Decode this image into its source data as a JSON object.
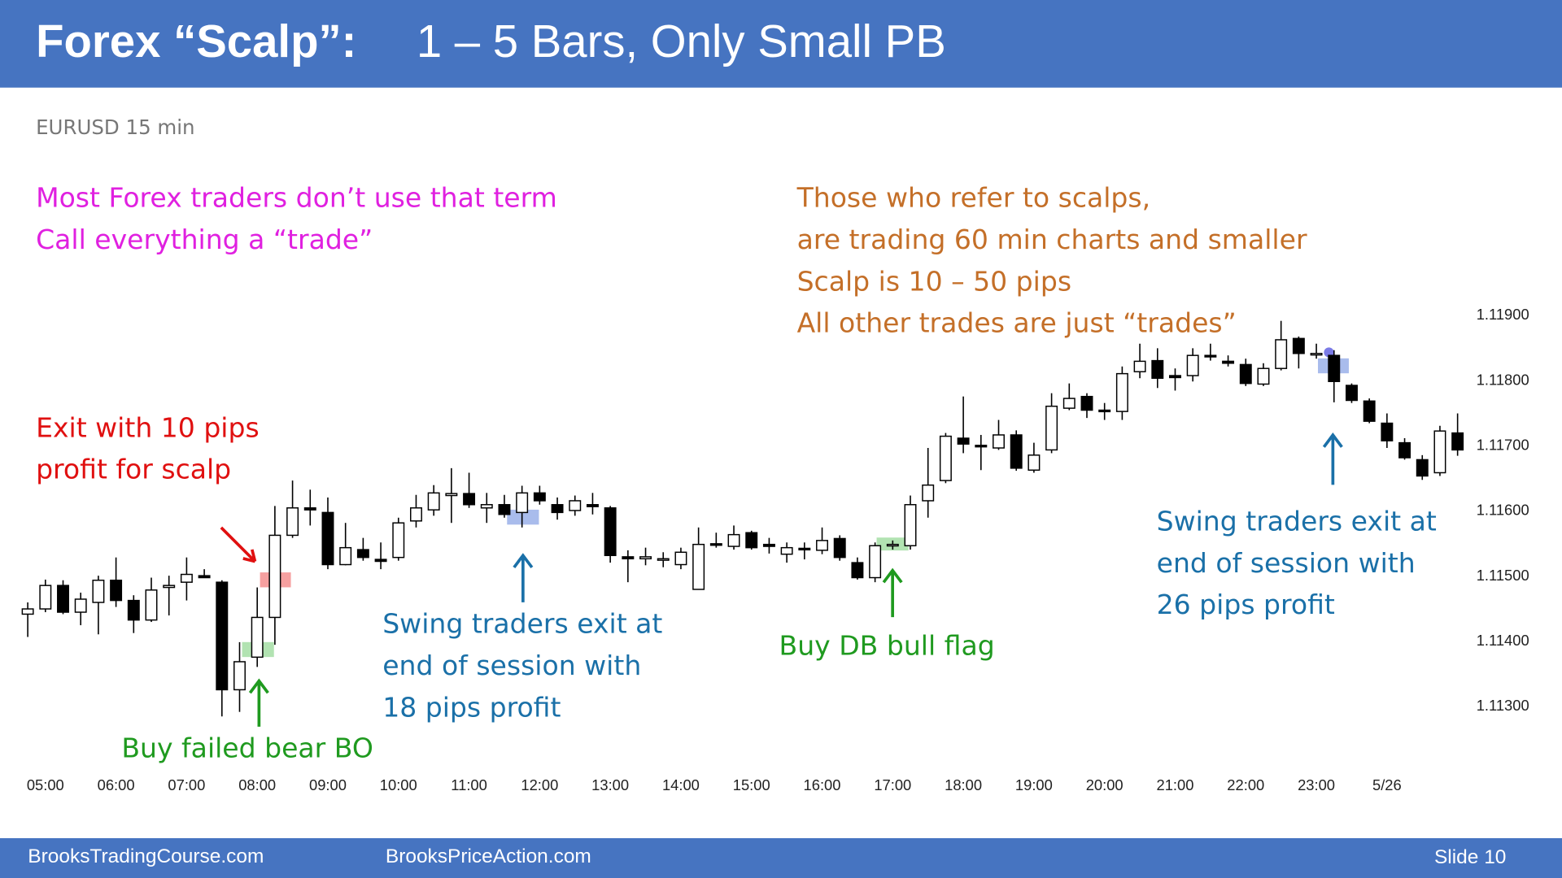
{
  "slide": {
    "title_bold": "Forex “Scalp”:",
    "title_rest": "1 – 5 Bars, Only Small PB",
    "footer_left": "BrooksTradingCourse.com",
    "footer_mid": "BrooksPriceAction.com",
    "footer_right": "Slide  10"
  },
  "chart_data": {
    "type": "candlestick",
    "subtitle": "EURUSD 15 min",
    "categories": [
      null,
      "05:00",
      null,
      null,
      null,
      "06:00",
      null,
      null,
      null,
      "07:00",
      null,
      null,
      null,
      "08:00",
      null,
      null,
      null,
      "09:00",
      null,
      null,
      null,
      "10:00",
      null,
      null,
      null,
      "11:00",
      null,
      null,
      null,
      "12:00",
      null,
      null,
      null,
      "13:00",
      null,
      null,
      null,
      "14:00",
      null,
      null,
      null,
      "15:00",
      null,
      null,
      null,
      "16:00",
      null,
      null,
      null,
      "17:00",
      null,
      null,
      null,
      "18:00",
      null,
      null,
      null,
      "19:00",
      null,
      null,
      null,
      "20:00",
      null,
      null,
      null,
      "21:00",
      null,
      null,
      null,
      "22:00",
      null,
      null,
      null,
      "23:00",
      null,
      null,
      null,
      "5/26",
      null,
      null,
      null,
      null
    ],
    "open": [
      1.11442,
      1.1145,
      1.11486,
      1.11445,
      1.1146,
      1.11494,
      1.11463,
      1.11433,
      1.11483,
      1.11491,
      1.11501,
      1.11491,
      1.11326,
      1.11376,
      1.11437,
      1.11563,
      1.11605,
      1.11598,
      1.11518,
      1.11541,
      1.11526,
      1.11529,
      1.11585,
      1.11602,
      1.11624,
      1.11627,
      1.11605,
      1.1161,
      1.11598,
      1.11628,
      1.1161,
      1.11601,
      1.1161,
      1.11605,
      1.1153,
      1.11527,
      1.11526,
      1.11518,
      1.1148,
      1.1155,
      1.11546,
      1.11567,
      1.11549,
      1.11534,
      1.11543,
      1.1154,
      1.11558,
      1.11521,
      1.11498,
      1.11547,
      1.11547,
      1.11616,
      1.11647,
      1.11712,
      1.11701,
      1.11697,
      1.11717,
      1.11663,
      1.11694,
      1.11758,
      1.11776,
      1.11755,
      1.11753,
      1.11814,
      1.11831,
      1.11808,
      1.11808,
      1.11839,
      1.1183,
      1.11825,
      1.11795,
      1.11819,
      1.11865,
      1.1184,
      1.11839,
      1.11793,
      1.11769,
      1.11735,
      1.11705,
      1.11679,
      1.11659,
      1.1172
    ],
    "high": [
      1.1146,
      1.11495,
      1.11494,
      1.11475,
      1.11501,
      1.11529,
      1.11471,
      1.11498,
      1.11501,
      1.11529,
      1.11511,
      1.11494,
      1.11399,
      1.11483,
      1.11608,
      1.11647,
      1.11633,
      1.11621,
      1.11582,
      1.11559,
      1.11552,
      1.1159,
      1.11625,
      1.1164,
      1.11666,
      1.11659,
      1.11628,
      1.11625,
      1.11639,
      1.11639,
      1.11621,
      1.11624,
      1.11628,
      1.11608,
      1.1154,
      1.11544,
      1.11537,
      1.11544,
      1.11575,
      1.11567,
      1.11578,
      1.1157,
      1.11559,
      1.11552,
      1.11552,
      1.11575,
      1.11563,
      1.11529,
      1.11552,
      1.11555,
      1.11624,
      1.11697,
      1.1172,
      1.11776,
      1.11717,
      1.1174,
      1.11724,
      1.11705,
      1.11781,
      1.11796,
      1.11781,
      1.11766,
      1.11822,
      1.11857,
      1.1185,
      1.11819,
      1.1185,
      1.11857,
      1.11839,
      1.11834,
      1.11827,
      1.11892,
      1.11868,
      1.11857,
      1.11847,
      1.11796,
      1.11773,
      1.1175,
      1.11712,
      1.11686,
      1.11731,
      1.1175
    ],
    "low": [
      1.11407,
      1.11445,
      1.11442,
      1.11425,
      1.11411,
      1.11453,
      1.11413,
      1.1143,
      1.1144,
      1.11463,
      1.11498,
      1.11285,
      1.11292,
      1.11361,
      1.11395,
      1.11559,
      1.11578,
      1.11511,
      1.11517,
      1.11524,
      1.11511,
      1.11524,
      1.11575,
      1.11593,
      1.11582,
      1.11605,
      1.11582,
      1.1159,
      1.11575,
      1.1161,
      1.11587,
      1.11593,
      1.11595,
      1.11521,
      1.11491,
      1.11517,
      1.11514,
      1.11511,
      1.1148,
      1.11544,
      1.11541,
      1.11541,
      1.11535,
      1.11521,
      1.11526,
      1.11534,
      1.11524,
      1.11495,
      1.11491,
      1.11541,
      1.11541,
      1.1159,
      1.11643,
      1.11689,
      1.11663,
      1.11694,
      1.11662,
      1.11659,
      1.11689,
      1.11755,
      1.11743,
      1.1174,
      1.1174,
      1.11804,
      1.11789,
      1.11785,
      1.11799,
      1.11831,
      1.11822,
      1.11792,
      1.11792,
      1.11816,
      1.11819,
      1.11834,
      1.11767,
      1.11766,
      1.11735,
      1.11697,
      1.11679,
      1.11648,
      1.11654,
      1.11685
    ],
    "close": [
      1.1145,
      1.11486,
      1.11445,
      1.11465,
      1.11494,
      1.11463,
      1.11433,
      1.11479,
      1.11486,
      1.11503,
      1.11498,
      1.11326,
      1.11369,
      1.11437,
      1.11563,
      1.11605,
      1.11602,
      1.11518,
      1.11544,
      1.11529,
      1.11523,
      1.11582,
      1.11605,
      1.11628,
      1.11627,
      1.1161,
      1.1161,
      1.11595,
      1.11628,
      1.11616,
      1.11598,
      1.11616,
      1.11607,
      1.11532,
      1.11527,
      1.1153,
      1.11527,
      1.11537,
      1.11549,
      1.11549,
      1.11564,
      1.11544,
      1.11546,
      1.11544,
      1.11541,
      1.11555,
      1.11529,
      1.11498,
      1.11547,
      1.11549,
      1.1161,
      1.1164,
      1.11715,
      1.11703,
      1.117,
      1.11717,
      1.11666,
      1.11686,
      1.11761,
      1.11773,
      1.11755,
      1.11753,
      1.11811,
      1.1183,
      1.11804,
      1.11805,
      1.11839,
      1.11837,
      1.11827,
      1.11796,
      1.11819,
      1.11863,
      1.11842,
      1.11842,
      1.11799,
      1.1177,
      1.11738,
      1.11708,
      1.11682,
      1.11654,
      1.11723,
      1.11694
    ],
    "up_color": "#ffffff",
    "down_color": "#000000",
    "ylim": [
      1.1128,
      1.1192
    ],
    "yticks": [
      {
        "value": 1.113,
        "label": "1.11300"
      },
      {
        "value": 1.114,
        "label": "1.11400"
      },
      {
        "value": 1.115,
        "label": "1.11500"
      },
      {
        "value": 1.116,
        "label": "1.11600"
      },
      {
        "value": 1.117,
        "label": "1.11700"
      },
      {
        "value": 1.118,
        "label": "1.11800"
      },
      {
        "value": 1.119,
        "label": "1.11900"
      }
    ],
    "grid": false,
    "annotations": [
      {
        "lines": [
          "Most Forex traders don’t use that term",
          "Call everything a “trade”"
        ],
        "color": "#e020e0"
      },
      {
        "lines": [
          "Those who refer to scalps,",
          "are trading 60 min charts and smaller",
          "Scalp is 10 – 50 pips",
          "All other trades are just “trades”"
        ],
        "color": "#c46f28"
      },
      {
        "lines": [
          "Exit with 10 pips",
          "profit for scalp"
        ],
        "color": "#e01010"
      },
      {
        "lines": [
          "Buy failed bear BO"
        ],
        "color": "#1f9a1f"
      },
      {
        "lines": [
          "Swing traders exit at",
          "end of session with",
          "18 pips profit"
        ],
        "color": "#1a70a8"
      },
      {
        "lines": [
          "Buy DB bull flag"
        ],
        "color": "#1f9a1f"
      },
      {
        "lines": [
          "Swing traders exit at",
          "end of session with",
          "26 pips profit"
        ],
        "color": "#1a70a8"
      }
    ]
  }
}
